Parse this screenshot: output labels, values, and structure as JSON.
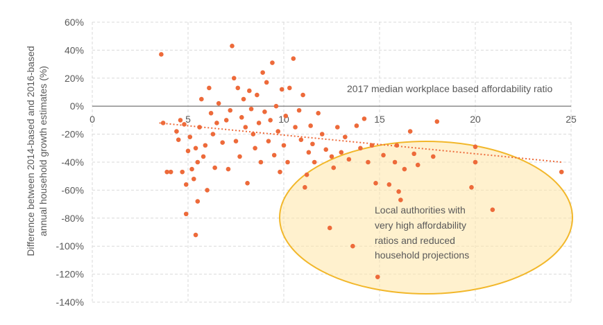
{
  "chart_data": {
    "type": "scatter",
    "title": "",
    "ylabel_lines": [
      "Difference between 2014-based and 2016-based",
      "annual household growth estimates (%)"
    ],
    "xlabel": "2017 median workplace based affordability ratio",
    "xlim": [
      0,
      25
    ],
    "ylim": [
      -140,
      60
    ],
    "x_ticks": [
      0,
      5,
      10,
      15,
      20,
      25
    ],
    "y_ticks": [
      60,
      40,
      20,
      0,
      -20,
      -40,
      -60,
      -80,
      -100,
      -120,
      -140
    ],
    "x_tick_labels": [
      "0",
      "5",
      "10",
      "15",
      "20",
      "25"
    ],
    "y_tick_labels": [
      "60%",
      "40%",
      "20%",
      "0%",
      "-20%",
      "-40%",
      "-60%",
      "-80%",
      "-100%",
      "-120%",
      "-140%"
    ],
    "grid": true,
    "legend": "none",
    "colors": {
      "points": "#ed6a3a",
      "trendline": "#ed6a3a",
      "zero_line": "#8c8c8c",
      "grid": "#d9d9d9",
      "ellipse_fill": "#ffe6a6",
      "ellipse_stroke": "#f2b72a",
      "text": "#595959"
    },
    "trendline": {
      "style": "dotted",
      "x": [
        3.5,
        24.5
      ],
      "y": [
        -12,
        -40
      ]
    },
    "annotation": {
      "lines": [
        "Local authorities with",
        "very high affordability",
        "ratios and reduced",
        "household projections"
      ]
    },
    "points": [
      [
        3.6,
        37
      ],
      [
        3.7,
        -12
      ],
      [
        3.9,
        -47
      ],
      [
        4.1,
        -47
      ],
      [
        4.4,
        -18
      ],
      [
        4.5,
        -24
      ],
      [
        4.6,
        -10
      ],
      [
        4.7,
        -47
      ],
      [
        4.8,
        -13
      ],
      [
        4.9,
        -56
      ],
      [
        4.9,
        -77
      ],
      [
        5.0,
        -32
      ],
      [
        5.1,
        -22
      ],
      [
        5.2,
        -45
      ],
      [
        5.3,
        -52
      ],
      [
        5.4,
        -92
      ],
      [
        5.4,
        -30
      ],
      [
        5.5,
        -68
      ],
      [
        5.5,
        -40
      ],
      [
        5.6,
        -15
      ],
      [
        5.7,
        5
      ],
      [
        5.8,
        -36
      ],
      [
        5.9,
        -28
      ],
      [
        6.0,
        -60
      ],
      [
        6.1,
        13
      ],
      [
        6.2,
        -5
      ],
      [
        6.3,
        -20
      ],
      [
        6.4,
        -44
      ],
      [
        6.5,
        -12
      ],
      [
        6.6,
        2
      ],
      [
        6.8,
        -26
      ],
      [
        7.0,
        -10
      ],
      [
        7.1,
        -45
      ],
      [
        7.2,
        -3
      ],
      [
        7.3,
        43
      ],
      [
        7.4,
        20
      ],
      [
        7.5,
        -25
      ],
      [
        7.6,
        13
      ],
      [
        7.7,
        -36
      ],
      [
        7.8,
        -8
      ],
      [
        7.9,
        5
      ],
      [
        8.0,
        -15
      ],
      [
        8.1,
        -55
      ],
      [
        8.2,
        11
      ],
      [
        8.3,
        -2
      ],
      [
        8.4,
        -20
      ],
      [
        8.5,
        -30
      ],
      [
        8.6,
        8
      ],
      [
        8.7,
        -12
      ],
      [
        8.8,
        -40
      ],
      [
        8.9,
        24
      ],
      [
        9.0,
        -4
      ],
      [
        9.1,
        17
      ],
      [
        9.2,
        -25
      ],
      [
        9.3,
        -10
      ],
      [
        9.4,
        31
      ],
      [
        9.5,
        -35
      ],
      [
        9.6,
        0
      ],
      [
        9.7,
        -18
      ],
      [
        9.8,
        -47
      ],
      [
        9.9,
        12
      ],
      [
        10.0,
        -28
      ],
      [
        10.1,
        -7
      ],
      [
        10.2,
        -40
      ],
      [
        10.3,
        13
      ],
      [
        10.5,
        34
      ],
      [
        10.6,
        -15
      ],
      [
        10.8,
        -3
      ],
      [
        10.9,
        -24
      ],
      [
        11.0,
        8
      ],
      [
        11.1,
        -58
      ],
      [
        11.2,
        -49
      ],
      [
        11.3,
        -33
      ],
      [
        11.4,
        -14
      ],
      [
        11.5,
        -27
      ],
      [
        11.6,
        -40
      ],
      [
        11.8,
        -5
      ],
      [
        12.0,
        -20
      ],
      [
        12.2,
        -31
      ],
      [
        12.4,
        -87
      ],
      [
        12.5,
        -36
      ],
      [
        12.6,
        -44
      ],
      [
        12.8,
        -15
      ],
      [
        13.0,
        -33
      ],
      [
        13.2,
        -22
      ],
      [
        13.4,
        -38
      ],
      [
        13.6,
        -100
      ],
      [
        13.8,
        -14
      ],
      [
        14.0,
        -30
      ],
      [
        14.2,
        -9
      ],
      [
        14.4,
        -40
      ],
      [
        14.6,
        -28
      ],
      [
        14.8,
        -55
      ],
      [
        14.9,
        -122
      ],
      [
        15.2,
        -35
      ],
      [
        15.5,
        -56
      ],
      [
        15.8,
        -40
      ],
      [
        15.9,
        -28
      ],
      [
        16.0,
        -61
      ],
      [
        16.1,
        -67
      ],
      [
        16.3,
        -45
      ],
      [
        16.6,
        -18
      ],
      [
        16.8,
        -34
      ],
      [
        17.0,
        -42
      ],
      [
        18.0,
        -11
      ],
      [
        17.8,
        -36
      ],
      [
        19.8,
        -58
      ],
      [
        20.0,
        -29
      ],
      [
        20.0,
        -40
      ],
      [
        20.9,
        -74
      ],
      [
        24.5,
        -47
      ]
    ]
  }
}
